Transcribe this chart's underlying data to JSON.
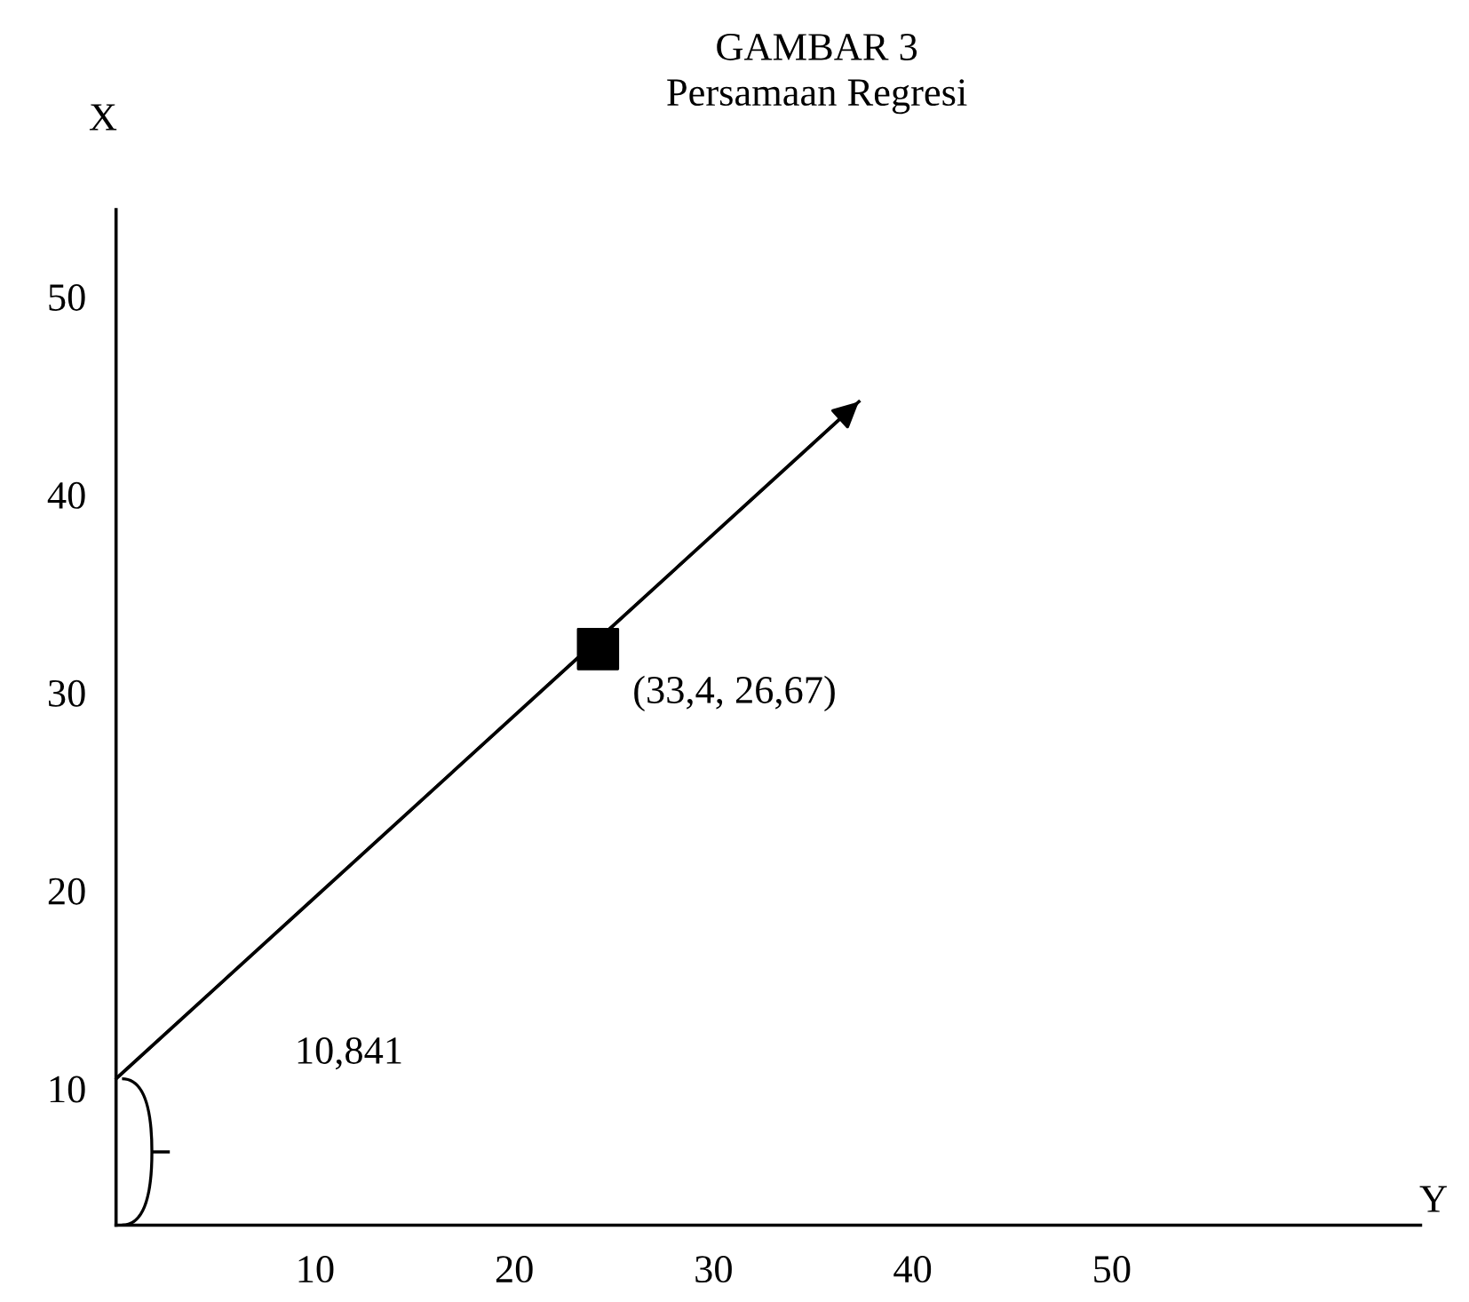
{
  "chart_data": {
    "type": "line",
    "title": "GAMBAR 3",
    "subtitle": "Persamaan Regresi",
    "xlabel": "Y",
    "ylabel": "X",
    "series": [
      {
        "x": [
          0,
          37.3
        ],
        "values": [
          10.5,
          44.7
        ],
        "color": "#000000"
      },
      {
        "type": "scatter",
        "x": [
          24.2
        ],
        "values": [
          32.2
        ],
        "color": "#000000",
        "marker": "square"
      }
    ],
    "annotations": [
      {
        "text": "(33,4, 26,67)",
        "x": 24.2,
        "y": 32.2
      },
      "10,841"
    ],
    "xlim": [
      0,
      65.5
    ],
    "ylim": [
      3.1,
      54.4
    ],
    "xticks": [
      10,
      20,
      30,
      40,
      50
    ],
    "yticks": [
      10,
      20,
      30,
      40,
      50
    ],
    "grid": false
  }
}
